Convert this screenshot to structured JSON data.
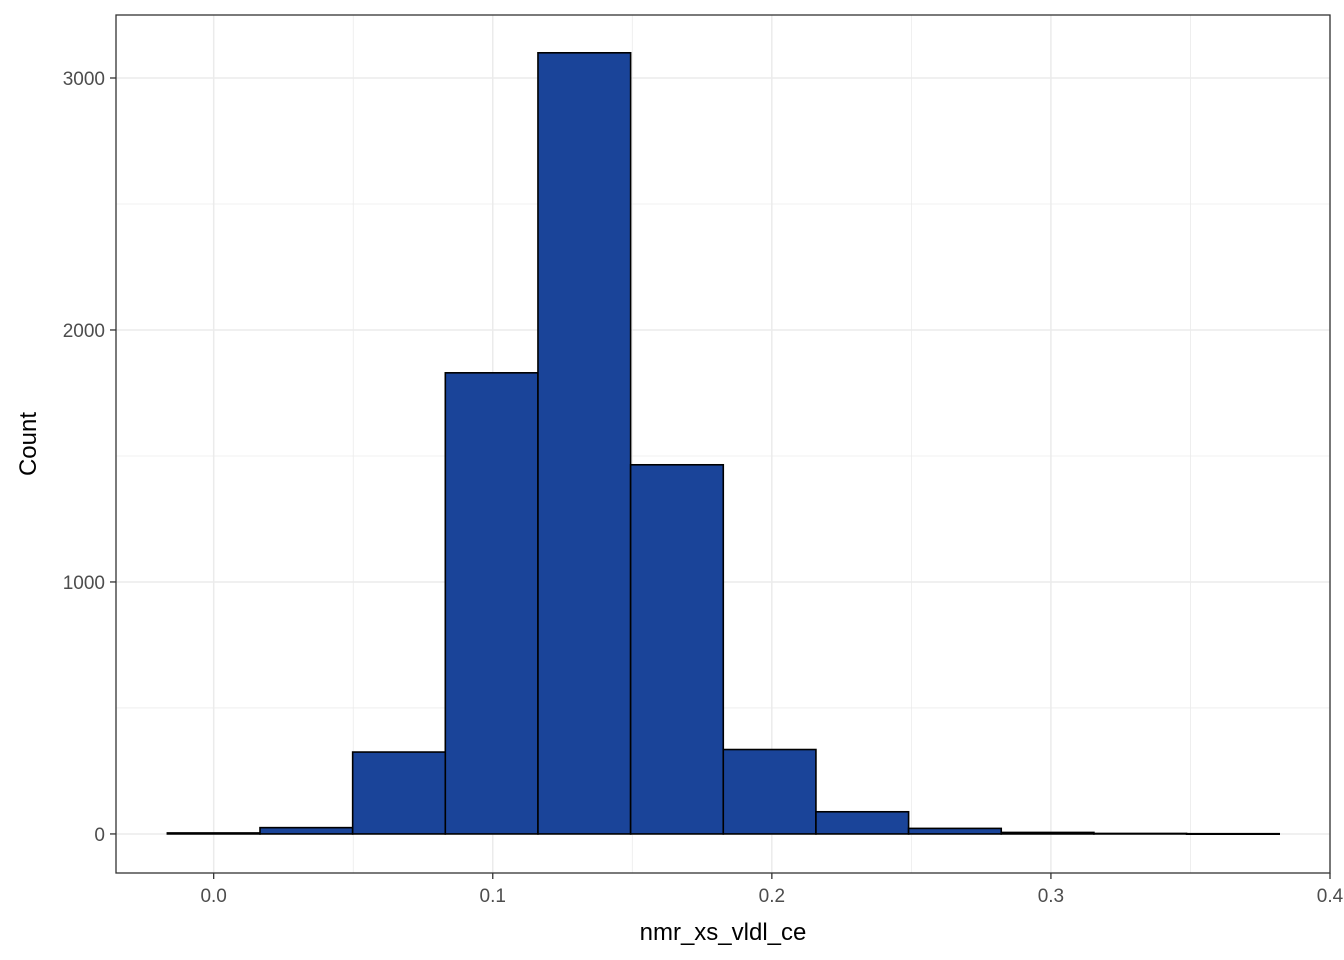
{
  "chart_data": {
    "type": "bar",
    "subtype": "histogram",
    "title": "",
    "xlabel": "nmr_xs_vldl_ce",
    "ylabel": "Count",
    "xlim": [
      -0.035,
      0.4
    ],
    "ylim": [
      -155,
      3250
    ],
    "x_ticks": [
      0.0,
      0.1,
      0.2,
      0.3,
      0.4
    ],
    "x_tick_labels": [
      "0.0",
      "0.1",
      "0.2",
      "0.3",
      "0.4"
    ],
    "y_ticks": [
      0,
      1000,
      2000,
      3000
    ],
    "y_tick_labels": [
      "0",
      "1000",
      "2000",
      "3000"
    ],
    "y_minor_ticks": [
      500,
      1500,
      2500
    ],
    "x_minor_ticks": [
      0.05,
      0.15,
      0.25,
      0.35
    ],
    "grid": true,
    "bin_edges": [
      -0.0166,
      0.0166,
      0.0498,
      0.083,
      0.1162,
      0.1494,
      0.1826,
      0.2158,
      0.249,
      0.2822,
      0.3154,
      0.3486,
      0.3818
    ],
    "values": [
      4,
      25,
      325,
      1830,
      3100,
      1465,
      335,
      88,
      22,
      6,
      2,
      1
    ],
    "colors": {
      "bar_fill": "#1A4499",
      "bar_stroke": "#000000",
      "grid": "#ebebeb",
      "panel_border": "#333333"
    }
  }
}
